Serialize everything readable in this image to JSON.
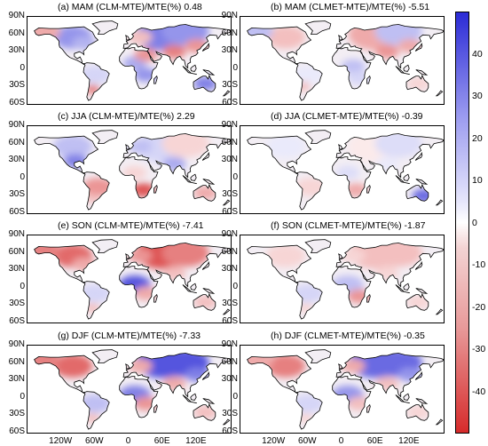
{
  "panels": [
    {
      "title": "(a) MAM (CLM-MTE)/MTE(%) 0.48",
      "variant": "clm-mam"
    },
    {
      "title": "(b) MAM (CLMET-MTE)/MTE(%) -5.51",
      "variant": "clmet-mam"
    },
    {
      "title": "(c) JJA (CLM-MTE)/MTE(%) 2.29",
      "variant": "clm-jja"
    },
    {
      "title": "(d) JJA (CLMET-MTE)/MTE(%) -0.39",
      "variant": "clmet-jja"
    },
    {
      "title": "(e) SON (CLM-MTE)/MTE(%) -7.41",
      "variant": "clm-son"
    },
    {
      "title": "(f) SON (CLMET-MTE)/MTE(%) -1.87",
      "variant": "clmet-son"
    },
    {
      "title": "(g) DJF (CLM-MTE)/MTE(%) -7.33",
      "variant": "clm-djf"
    },
    {
      "title": "(h) DJF (CLMET-MTE)/MTE(%) -0.35",
      "variant": "clmet-djf"
    }
  ],
  "lat_ticks": [
    "90N",
    "60N",
    "30N",
    "0",
    "30S",
    "60S"
  ],
  "lon_ticks": [
    "120W",
    "60W",
    "0",
    "60E",
    "120E"
  ],
  "colorbar": {
    "ticks": [
      "40",
      "30",
      "20",
      "10",
      "0",
      "-10",
      "-20",
      "-30",
      "-40"
    ],
    "min": -50,
    "max": 50,
    "colors": {
      "positive": "#2b2bd6",
      "neutral": "#ffffff",
      "negative": "#d62b2b"
    }
  }
}
